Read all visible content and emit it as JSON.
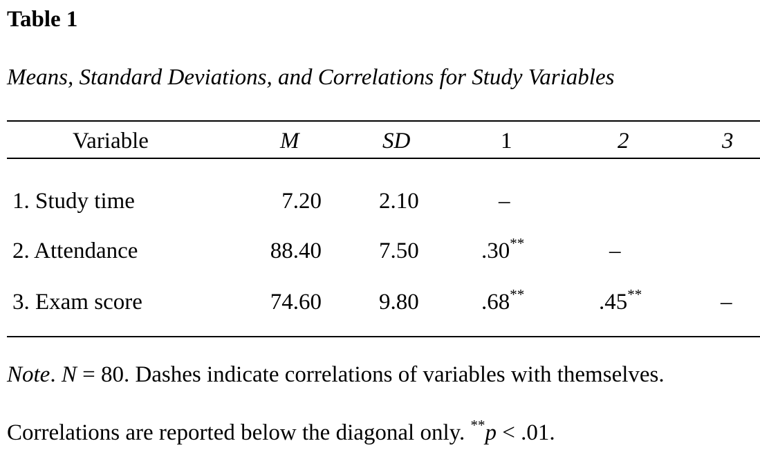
{
  "table": {
    "label": "Table 1",
    "title": "Means, Standard Deviations, and Correlations for Study Variables",
    "headers": {
      "variable": "Variable",
      "m": "M",
      "sd": "SD",
      "c1": "1",
      "c2": "2",
      "c3": "3"
    },
    "rows": [
      {
        "variable": "1. Study time",
        "m": "7.20",
        "sd": "2.10",
        "c1": "–",
        "c2": "",
        "c3": ""
      },
      {
        "variable": "2. Attendance",
        "m": "88.40",
        "sd": "7.50",
        "c1": ".30",
        "c1_sig": "**",
        "c2": "–",
        "c3": ""
      },
      {
        "variable": "3. Exam score",
        "m": "74.60",
        "sd": "9.80",
        "c1": ".68",
        "c1_sig": "**",
        "c2": ".45",
        "c2_sig": "**",
        "c3": "–"
      }
    ]
  },
  "note": {
    "label": "Note",
    "label_punct": ". ",
    "n_symbol": "N",
    "line1_rest": " = 80. Dashes indicate correlations of variables with themselves.",
    "line2_text": "Correlations are reported below the diagonal only. ",
    "sig_marker": "**",
    "p_symbol": "p",
    "p_rest": " < .01."
  }
}
